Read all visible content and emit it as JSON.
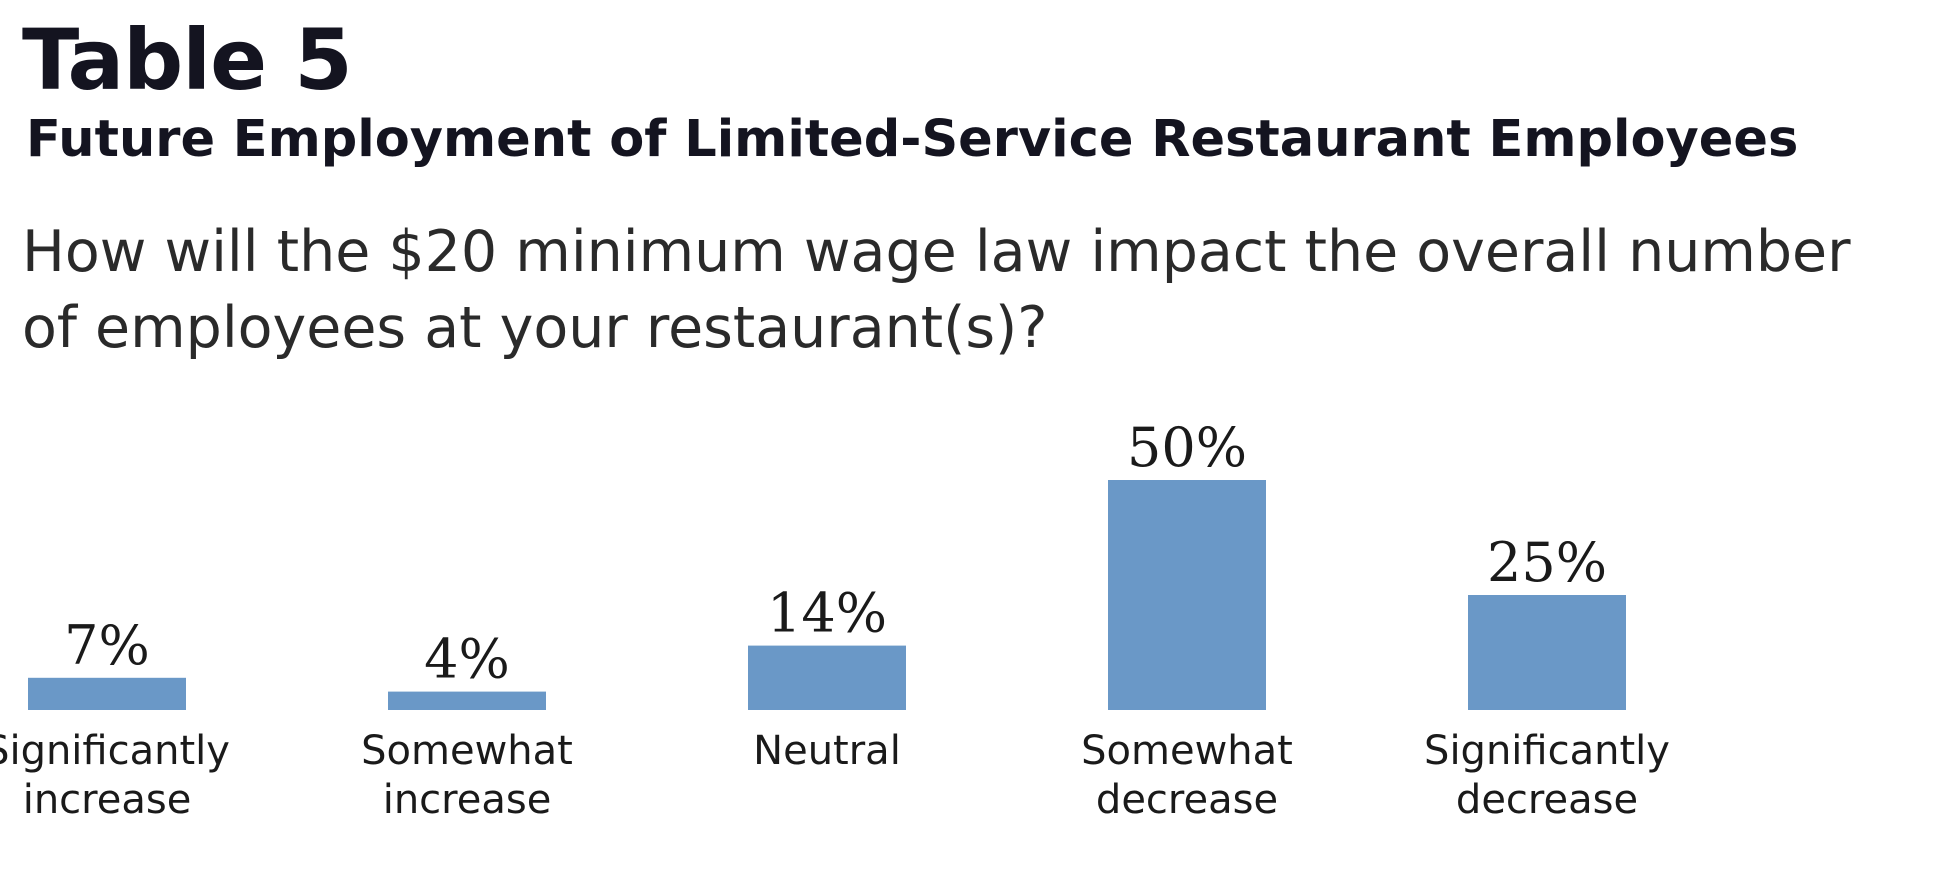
{
  "chart_data": {
    "type": "bar",
    "title": "Table 5",
    "subtitle": "Future Employment of Limited-Service Restaurant Employees",
    "question_lines": [
      "How will the $20 minimum wage law impact the overall number",
      "of employees at your restaurant(s)?"
    ],
    "categories": [
      [
        "Significantly",
        "increase"
      ],
      [
        "Somewhat",
        "increase"
      ],
      [
        "Neutral"
      ],
      [
        "Somewhat",
        "decrease"
      ],
      [
        "Significantly",
        "decrease"
      ]
    ],
    "values": [
      7,
      4,
      14,
      50,
      25
    ],
    "value_labels": [
      "7%",
      "4%",
      "14%",
      "50%",
      "25%"
    ],
    "bar_color": "#6a98c7",
    "ylim": [
      0,
      50
    ],
    "grid": false,
    "xlabel": "",
    "ylabel": ""
  }
}
